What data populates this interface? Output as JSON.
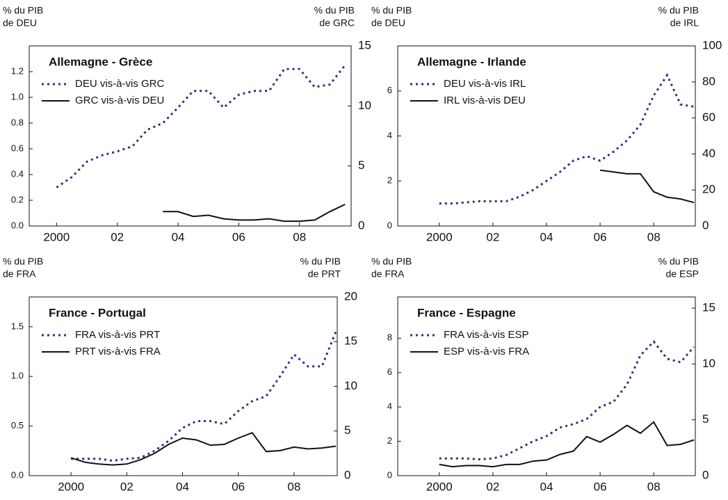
{
  "chart_data": [
    {
      "type": "line",
      "title": "Allemagne - Grèce",
      "y_label": [
        "% du PIB",
        "de DEU"
      ],
      "y2_label": [
        "% du PIB",
        "de GRC"
      ],
      "x": [
        2000,
        2000.5,
        2001,
        2001.5,
        2002,
        2002.5,
        2003,
        2003.5,
        2004,
        2004.5,
        2005,
        2005.5,
        2006,
        2006.5,
        2007,
        2007.5,
        2008,
        2008.5,
        2009,
        2009.5
      ],
      "xlim": [
        1999.1,
        2009.7
      ],
      "xticks": [
        2000,
        {
          "value": 2002,
          "label": "02"
        },
        {
          "value": 2004,
          "label": "04"
        },
        {
          "value": 2006,
          "label": "06"
        },
        {
          "value": 2008,
          "label": "08"
        }
      ],
      "ylim": [
        0,
        1.4
      ],
      "yticks": [
        {
          "value": 0,
          "label": "0.0"
        },
        0.2,
        0.4,
        0.6,
        0.8,
        {
          "value": 1,
          "label": "1.0"
        },
        1.2
      ],
      "y2lim": [
        0,
        15
      ],
      "y2ticks": [
        0,
        5,
        10,
        15
      ],
      "series": [
        {
          "name": "DEU vis-à-vis GRC",
          "color": "#2b2f8f",
          "line_style": "dotted",
          "values": [
            0.3,
            0.38,
            0.5,
            0.55,
            0.58,
            0.62,
            0.75,
            0.8,
            0.92,
            1.05,
            1.05,
            0.92,
            1.02,
            1.05,
            1.05,
            1.22,
            1.22,
            1.08,
            1.1,
            1.25
          ]
        },
        {
          "name": "GRC vis-à-vis DEU",
          "color": "#111111",
          "line_style": "solid",
          "axis": "y2",
          "values": [
            null,
            null,
            null,
            null,
            null,
            null,
            null,
            1.2,
            1.2,
            0.8,
            0.9,
            0.6,
            0.5,
            0.5,
            0.6,
            0.4,
            0.4,
            0.5,
            1.2,
            1.8
          ]
        }
      ]
    },
    {
      "type": "line",
      "title": "Allemagne - Irlande",
      "y_label": [
        "% du PIB",
        "de DEU"
      ],
      "y2_label": [
        "% du PIB",
        "de IRL"
      ],
      "x": [
        2000,
        2000.5,
        2001,
        2001.5,
        2002,
        2002.5,
        2003,
        2003.5,
        2004,
        2004.5,
        2005,
        2005.5,
        2006,
        2006.5,
        2007,
        2007.5,
        2008,
        2008.5,
        2009,
        2009.5
      ],
      "xlim": [
        1998.45,
        2009.55
      ],
      "xticks": [
        2000,
        {
          "value": 2002,
          "label": "02"
        },
        {
          "value": 2004,
          "label": "04"
        },
        {
          "value": 2006,
          "label": "06"
        },
        {
          "value": 2008,
          "label": "08"
        }
      ],
      "ylim": [
        0,
        8
      ],
      "yticks": [
        0,
        2,
        4,
        6
      ],
      "y2lim": [
        0,
        100
      ],
      "y2ticks": [
        0,
        20,
        40,
        60,
        80,
        100
      ],
      "series": [
        {
          "name": "DEU vis-à-vis IRL",
          "color": "#2b2f8f",
          "line_style": "dotted",
          "values": [
            1.0,
            1.0,
            1.05,
            1.1,
            1.1,
            1.1,
            1.3,
            1.6,
            2.0,
            2.4,
            2.9,
            3.1,
            2.9,
            3.3,
            3.8,
            4.5,
            5.8,
            6.7,
            5.4,
            5.3
          ]
        },
        {
          "name": "IRL vis-à-vis DEU",
          "color": "#111111",
          "line_style": "solid",
          "axis": "y2",
          "values": [
            null,
            null,
            null,
            null,
            null,
            null,
            null,
            null,
            null,
            null,
            null,
            null,
            31,
            30,
            29,
            29,
            19,
            16,
            15,
            13
          ]
        }
      ]
    },
    {
      "type": "line",
      "title": "France - Portugal",
      "y_label": [
        "% du PIB",
        "de FRA"
      ],
      "y2_label": [
        "% du PIB",
        "de PRT"
      ],
      "x": [
        2000,
        2000.5,
        2001,
        2001.5,
        2002,
        2002.5,
        2003,
        2003.5,
        2004,
        2004.5,
        2005,
        2005.5,
        2006,
        2006.5,
        2007,
        2007.5,
        2008,
        2008.5,
        2009,
        2009.5
      ],
      "xlim": [
        1998.5,
        2009.55
      ],
      "xticks": [
        2000,
        {
          "value": 2002,
          "label": "02"
        },
        {
          "value": 2004,
          "label": "04"
        },
        {
          "value": 2006,
          "label": "06"
        },
        {
          "value": 2008,
          "label": "08"
        }
      ],
      "ylim": [
        0,
        1.8
      ],
      "yticks": [
        {
          "value": 0,
          "label": "0.0"
        },
        0.5,
        {
          "value": 1,
          "label": "1.0"
        },
        1.5
      ],
      "y2lim": [
        0,
        20
      ],
      "y2ticks": [
        0,
        5,
        10,
        15,
        20
      ],
      "series": [
        {
          "name": "FRA vis-à-vis PRT",
          "color": "#2b2f8f",
          "line_style": "dotted",
          "values": [
            0.17,
            0.17,
            0.17,
            0.15,
            0.17,
            0.18,
            0.25,
            0.35,
            0.48,
            0.55,
            0.55,
            0.52,
            0.65,
            0.75,
            0.8,
            1.0,
            1.22,
            1.1,
            1.1,
            1.45
          ]
        },
        {
          "name": "PRT vis-à-vis FRA",
          "color": "#111111",
          "line_style": "solid",
          "axis": "y2",
          "values": [
            2.0,
            1.5,
            1.3,
            1.2,
            1.3,
            1.8,
            2.5,
            3.5,
            4.2,
            4.0,
            3.4,
            3.5,
            4.2,
            4.8,
            2.7,
            2.8,
            3.2,
            3.0,
            3.1,
            3.3
          ]
        }
      ]
    },
    {
      "type": "line",
      "title": "France - Espagne",
      "y_label": [
        "% du PIB",
        "de FRA"
      ],
      "y2_label": [
        "% du PIB",
        "de ESP"
      ],
      "x": [
        2000,
        2000.5,
        2001,
        2001.5,
        2002,
        2002.5,
        2003,
        2003.5,
        2004,
        2004.5,
        2005,
        2005.5,
        2006,
        2006.5,
        2007,
        2007.5,
        2008,
        2008.5,
        2009,
        2009.5
      ],
      "xlim": [
        1998.45,
        2009.55
      ],
      "xticks": [
        2000,
        {
          "value": 2002,
          "label": "02"
        },
        {
          "value": 2004,
          "label": "04"
        },
        {
          "value": 2006,
          "label": "06"
        },
        {
          "value": 2008,
          "label": "08"
        }
      ],
      "ylim": [
        0,
        10.4
      ],
      "yticks": [
        0,
        2,
        4,
        6,
        8
      ],
      "y2lim": [
        0,
        16
      ],
      "y2ticks": [
        0,
        5,
        10,
        15
      ],
      "series": [
        {
          "name": "FRA vis-à-vis ESP",
          "color": "#2b2f8f",
          "line_style": "dotted",
          "values": [
            1.0,
            1.0,
            1.0,
            0.95,
            1.0,
            1.2,
            1.6,
            2.0,
            2.3,
            2.8,
            3.0,
            3.3,
            4.0,
            4.3,
            5.3,
            7.0,
            7.8,
            6.8,
            6.6,
            7.5
          ]
        },
        {
          "name": "ESP vis-à-vis FRA",
          "color": "#111111",
          "line_style": "solid",
          "axis": "y2",
          "values": [
            1.0,
            0.8,
            0.9,
            0.9,
            0.8,
            1.0,
            1.0,
            1.3,
            1.4,
            1.9,
            2.2,
            3.5,
            3.0,
            3.7,
            4.5,
            3.8,
            4.8,
            2.7,
            2.8,
            3.2
          ]
        }
      ]
    }
  ]
}
